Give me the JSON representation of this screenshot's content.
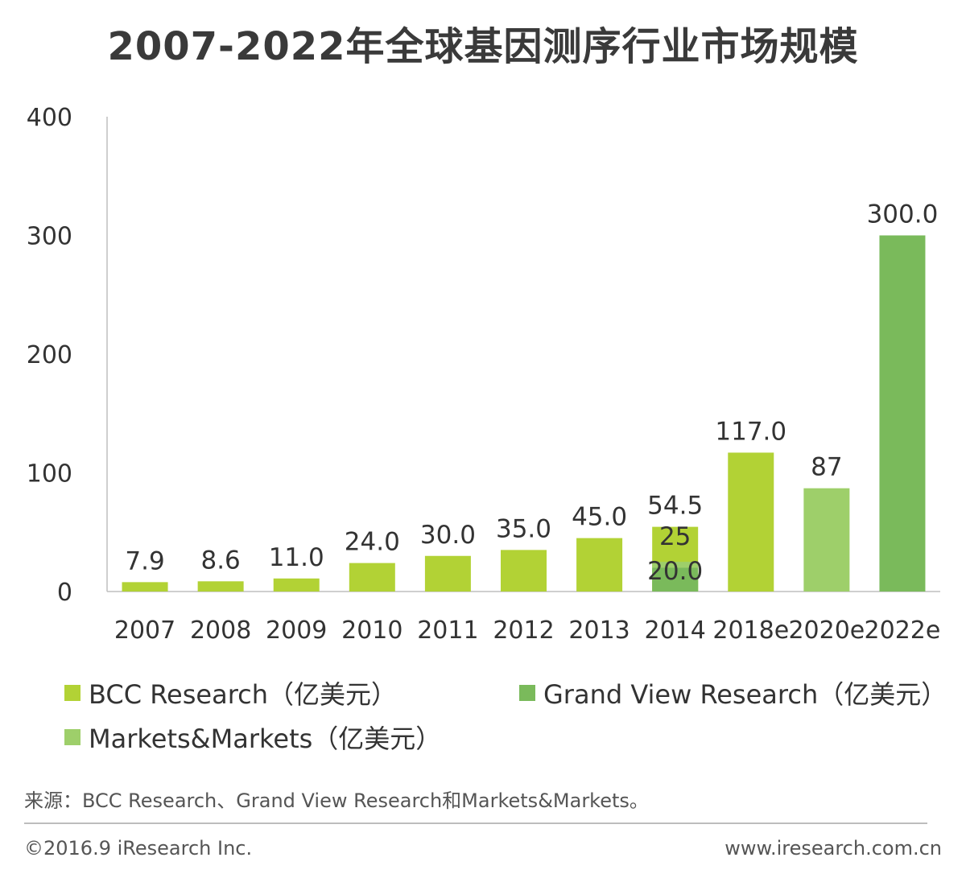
{
  "chart_data": {
    "type": "bar",
    "title": "2007-2022年全球基因测序行业市场规模",
    "categories": [
      "2007",
      "2008",
      "2009",
      "2010",
      "2011",
      "2012",
      "2013",
      "2014",
      "2018e",
      "2020e",
      "2022e"
    ],
    "ylim": [
      0,
      400
    ],
    "yticks": [
      "0",
      "100",
      "200",
      "300",
      "400"
    ],
    "series": [
      {
        "name": "BCC Research（亿美元）",
        "color": "#b2d235",
        "values": [
          7.9,
          8.6,
          11.0,
          24.0,
          30.0,
          35.0,
          45.0,
          54.5,
          117.0,
          null,
          null
        ],
        "labels": [
          "7.9",
          "8.6",
          "11.0",
          "24.0",
          "30.0",
          "35.0",
          "45.0",
          "54.5",
          "117.0",
          null,
          null
        ]
      },
      {
        "name": "Grand View Research（亿美元）",
        "color": "#7aba5b",
        "values": [
          null,
          null,
          null,
          null,
          null,
          null,
          null,
          20.0,
          null,
          null,
          300.0
        ],
        "labels": [
          null,
          null,
          null,
          null,
          null,
          null,
          null,
          "20.0",
          null,
          null,
          "300.0"
        ]
      },
      {
        "name": "Markets&Markets（亿美元）",
        "color": "#9ecf6a",
        "values": [
          null,
          null,
          null,
          null,
          null,
          null,
          null,
          25,
          null,
          87,
          null
        ],
        "labels": [
          null,
          null,
          null,
          null,
          null,
          null,
          null,
          "25",
          null,
          "87",
          null
        ]
      }
    ]
  },
  "footer": {
    "source": "来源：BCC Research、Grand View Research和Markets&Markets。",
    "copyright": "©2016.9 iResearch Inc.",
    "website": "www.iresearch.com.cn"
  }
}
